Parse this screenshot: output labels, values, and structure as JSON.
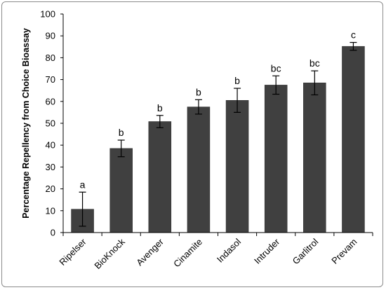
{
  "chart_data": {
    "type": "bar",
    "title": "",
    "xlabel": "",
    "ylabel": "Percentage Repellency from Choice Bioassay",
    "ylim": [
      0,
      100
    ],
    "yticks": [
      0,
      10,
      20,
      30,
      40,
      50,
      60,
      70,
      80,
      90,
      100
    ],
    "grid": false,
    "legend": "none",
    "bar_color": "#404040",
    "categories": [
      "Ripelser",
      "BioKnock",
      "Avenger",
      "Cinamite",
      "Indasol",
      "Intruder",
      "Garlitrol",
      "Prevam"
    ],
    "values": [
      10.7,
      38.5,
      50.8,
      57.5,
      60.5,
      67.5,
      68.5,
      85.2
    ],
    "error": [
      7.8,
      3.8,
      2.8,
      3.3,
      5.5,
      4.2,
      5.5,
      1.8
    ],
    "significance": [
      "a",
      "b",
      "b",
      "b",
      "b",
      "bc",
      "bc",
      "c"
    ]
  }
}
